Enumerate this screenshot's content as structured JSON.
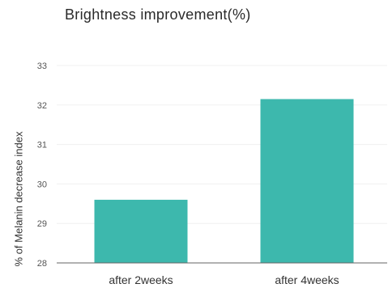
{
  "chart_data": {
    "type": "bar",
    "title": "Brightness improvement(%)",
    "xlabel": "",
    "ylabel": "% of  Melanin decrease index",
    "categories": [
      "after 2weeks",
      "after 4weeks"
    ],
    "values": [
      29.6,
      32.15
    ],
    "ylim": [
      28,
      33
    ],
    "yticks": [
      "28",
      "29",
      "30",
      "31",
      "32",
      "33"
    ],
    "grid": true,
    "legend": "none",
    "bar_color": "#3db8ad",
    "axis_color": "#666666",
    "grid_color": "#f0f0f0",
    "tick_text_color": "#555555"
  }
}
